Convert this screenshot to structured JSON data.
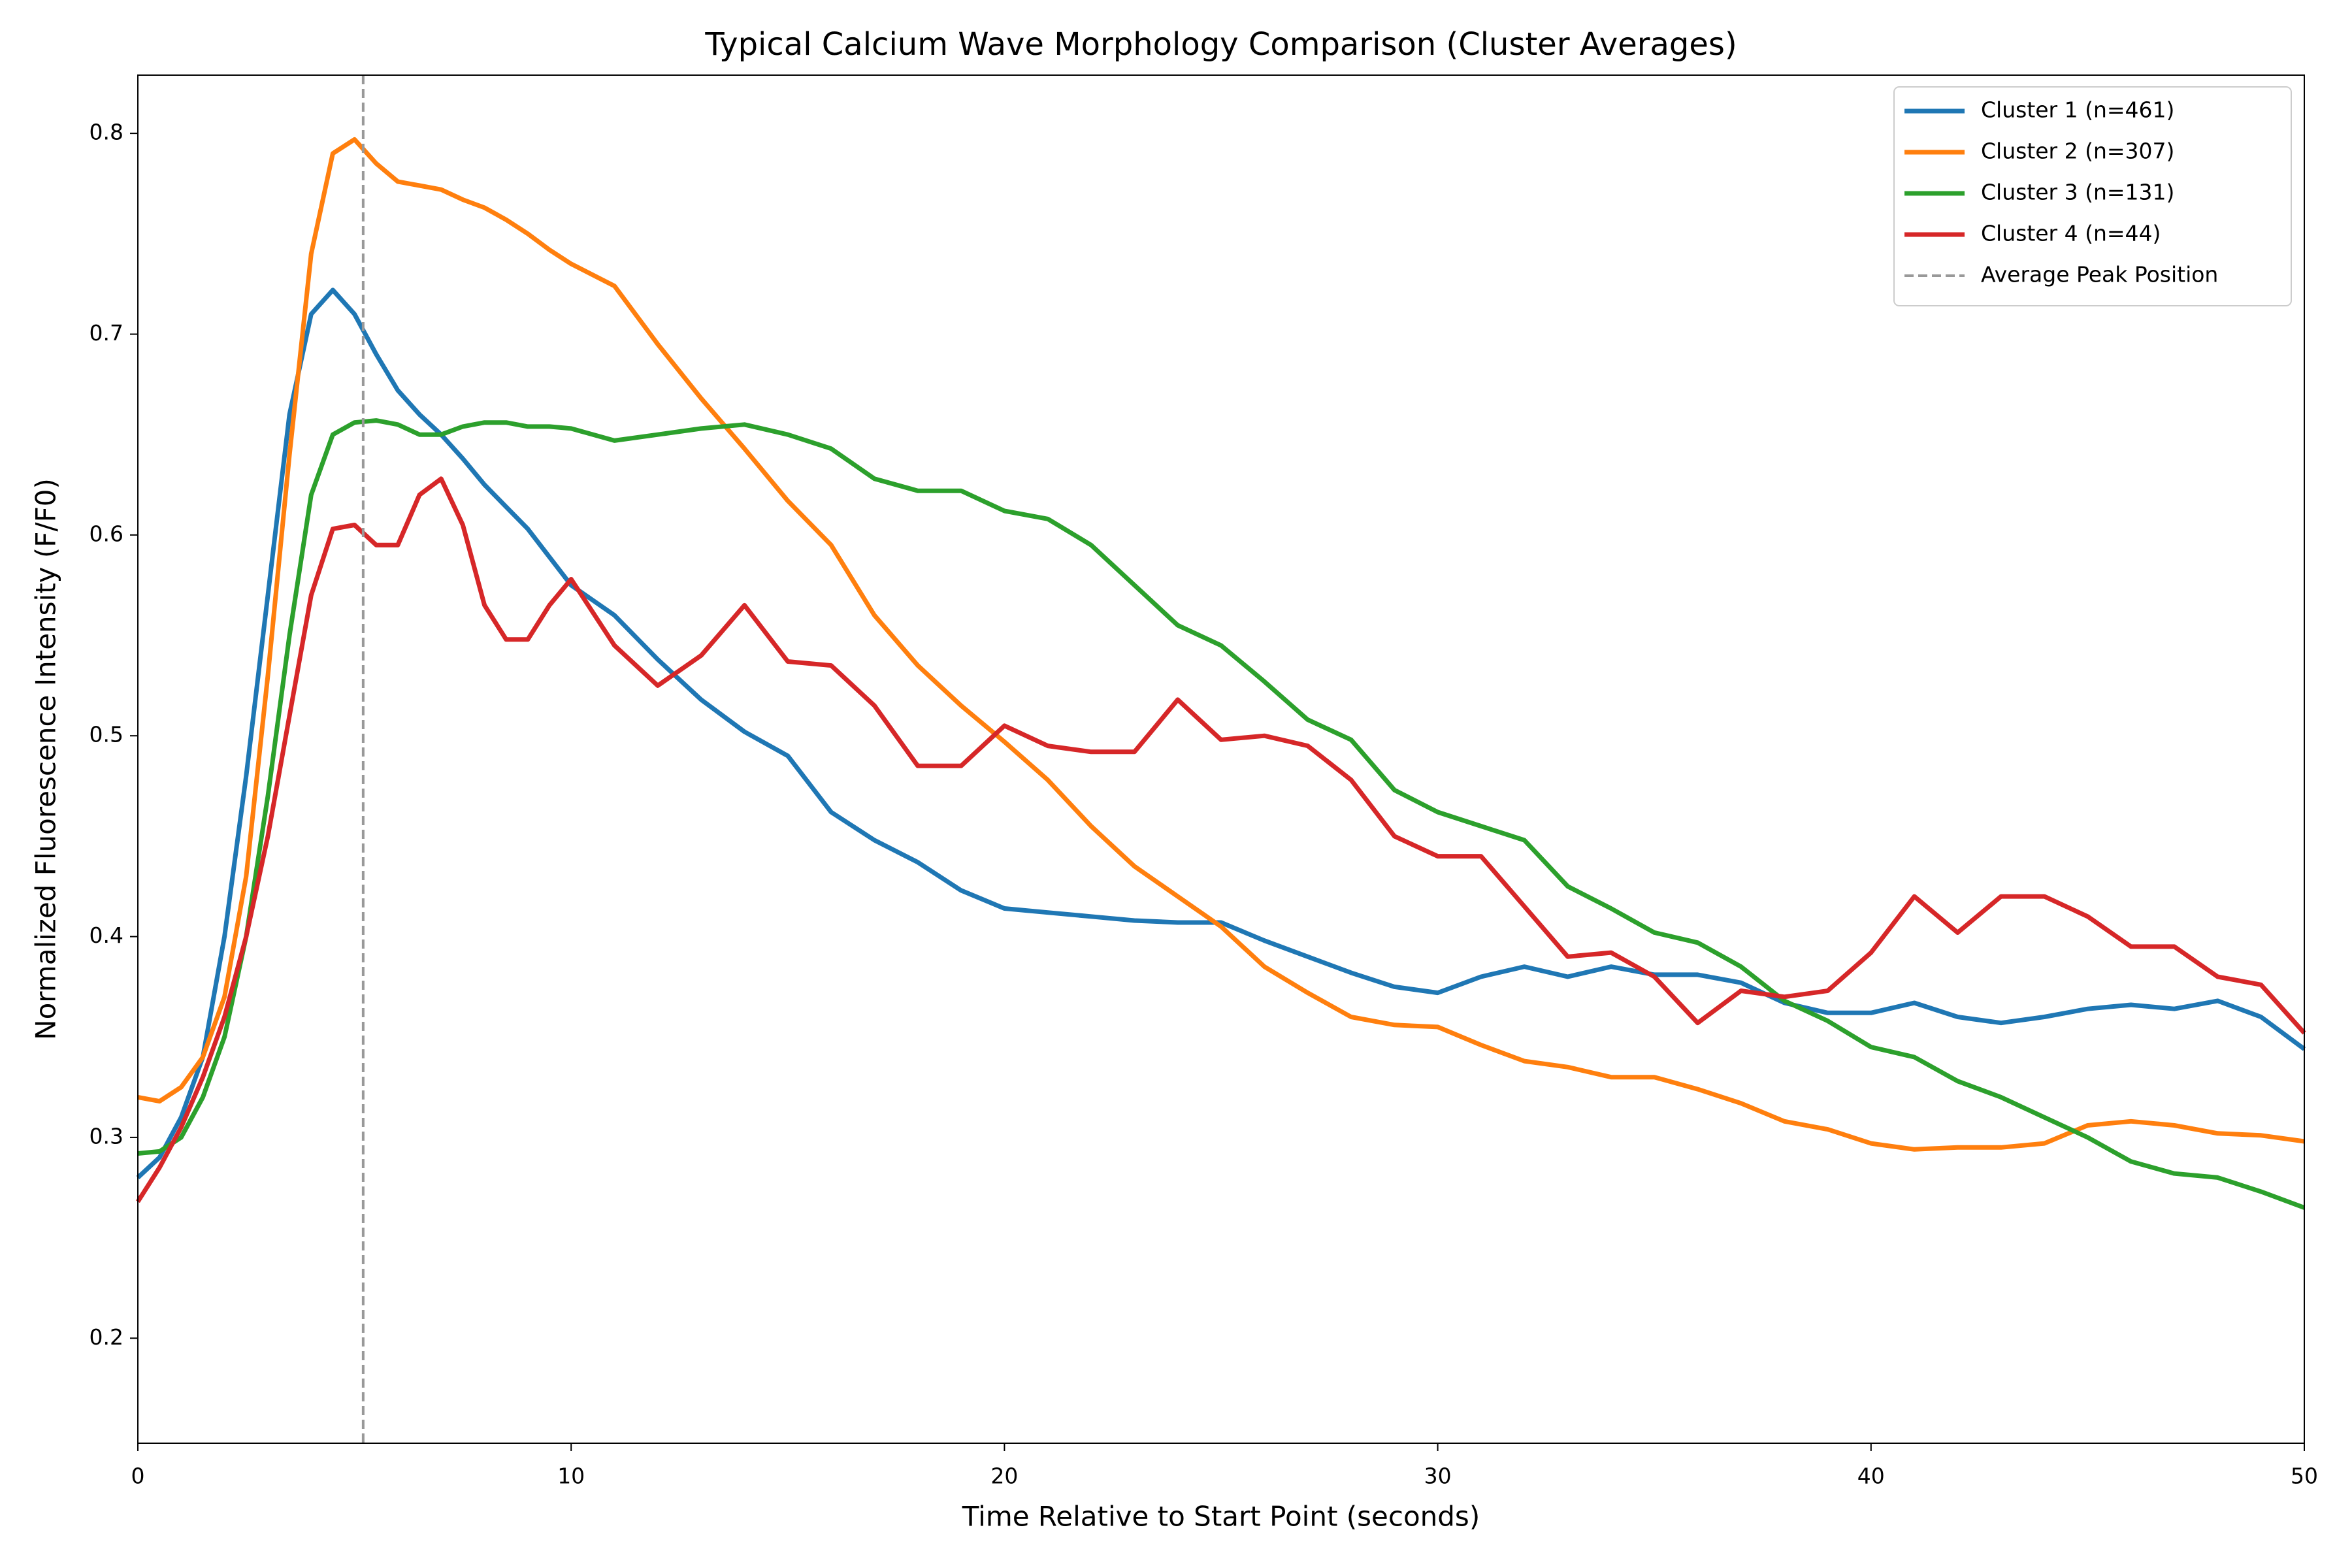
{
  "chart_data": {
    "type": "line",
    "title": "Typical Calcium Wave Morphology Comparison (Cluster Averages)",
    "x_label": "Time Relative to Start Point (seconds)",
    "y_label": "Normalized Fluorescence Intensity (F/F0)",
    "x": [
      0,
      0.5,
      1,
      1.5,
      2,
      2.5,
      3,
      3.5,
      4,
      4.5,
      5,
      5.5,
      6,
      6.5,
      7,
      7.5,
      8,
      8.5,
      9,
      9.5,
      10,
      11,
      12,
      13,
      14,
      15,
      16,
      17,
      18,
      19,
      20,
      21,
      22,
      23,
      24,
      25,
      26,
      27,
      28,
      29,
      30,
      31,
      32,
      33,
      34,
      35,
      36,
      37,
      38,
      39,
      40,
      41,
      42,
      43,
      44,
      45,
      46,
      47,
      48,
      49,
      50
    ],
    "series": [
      {
        "name": "Cluster 1 (n=461)",
        "color": "#1f77b4",
        "values": [
          0.28,
          0.29,
          0.31,
          0.34,
          0.4,
          0.48,
          0.57,
          0.66,
          0.71,
          0.722,
          0.71,
          0.69,
          0.672,
          0.66,
          0.65,
          0.638,
          0.625,
          0.614,
          0.603,
          0.589,
          0.575,
          0.56,
          0.538,
          0.518,
          0.502,
          0.49,
          0.462,
          0.448,
          0.437,
          0.423,
          0.414,
          0.412,
          0.41,
          0.408,
          0.407,
          0.407,
          0.398,
          0.39,
          0.382,
          0.375,
          0.372,
          0.38,
          0.385,
          0.38,
          0.385,
          0.381,
          0.381,
          0.377,
          0.367,
          0.362,
          0.362,
          0.367,
          0.36,
          0.357,
          0.36,
          0.364,
          0.366,
          0.364,
          0.368,
          0.36,
          0.344
        ]
      },
      {
        "name": "Cluster 2 (n=307)",
        "color": "#ff7f0e",
        "values": [
          0.32,
          0.318,
          0.325,
          0.34,
          0.37,
          0.43,
          0.53,
          0.64,
          0.74,
          0.79,
          0.797,
          0.785,
          0.776,
          0.774,
          0.772,
          0.767,
          0.763,
          0.757,
          0.75,
          0.742,
          0.735,
          0.724,
          0.695,
          0.668,
          0.643,
          0.617,
          0.595,
          0.56,
          0.535,
          0.515,
          0.497,
          0.478,
          0.455,
          0.435,
          0.42,
          0.405,
          0.385,
          0.372,
          0.36,
          0.356,
          0.355,
          0.346,
          0.338,
          0.335,
          0.33,
          0.33,
          0.324,
          0.317,
          0.308,
          0.304,
          0.297,
          0.294,
          0.295,
          0.295,
          0.297,
          0.306,
          0.308,
          0.306,
          0.302,
          0.301,
          0.298
        ]
      },
      {
        "name": "Cluster 3 (n=131)",
        "color": "#2ca02c",
        "values": [
          0.292,
          0.293,
          0.3,
          0.32,
          0.35,
          0.4,
          0.47,
          0.55,
          0.62,
          0.65,
          0.656,
          0.657,
          0.655,
          0.65,
          0.65,
          0.654,
          0.656,
          0.656,
          0.654,
          0.654,
          0.653,
          0.647,
          0.65,
          0.653,
          0.655,
          0.65,
          0.643,
          0.628,
          0.622,
          0.622,
          0.612,
          0.608,
          0.595,
          0.575,
          0.555,
          0.545,
          0.527,
          0.508,
          0.498,
          0.473,
          0.462,
          0.455,
          0.448,
          0.425,
          0.414,
          0.402,
          0.397,
          0.385,
          0.368,
          0.358,
          0.345,
          0.34,
          0.328,
          0.32,
          0.31,
          0.3,
          0.288,
          0.282,
          0.28,
          0.273,
          0.265
        ]
      },
      {
        "name": "Cluster 4 (n=44)",
        "color": "#d62728",
        "values": [
          0.268,
          0.285,
          0.305,
          0.33,
          0.36,
          0.4,
          0.45,
          0.51,
          0.57,
          0.603,
          0.605,
          0.595,
          0.595,
          0.62,
          0.628,
          0.605,
          0.565,
          0.548,
          0.548,
          0.565,
          0.578,
          0.545,
          0.525,
          0.54,
          0.565,
          0.537,
          0.535,
          0.515,
          0.485,
          0.485,
          0.505,
          0.495,
          0.492,
          0.492,
          0.518,
          0.498,
          0.5,
          0.495,
          0.478,
          0.45,
          0.44,
          0.44,
          0.415,
          0.39,
          0.392,
          0.38,
          0.357,
          0.373,
          0.37,
          0.373,
          0.392,
          0.42,
          0.402,
          0.42,
          0.42,
          0.41,
          0.395,
          0.395,
          0.38,
          0.376,
          0.352
        ]
      }
    ],
    "vline": {
      "name": "Average Peak Position",
      "x": 5.2,
      "color": "#999999"
    },
    "xlim": [
      0,
      50
    ],
    "xticks": [
      0,
      10,
      20,
      30,
      40,
      50
    ],
    "ylim": [
      0.1477,
      0.829
    ],
    "yticks": [
      0.2,
      0.3,
      0.4,
      0.5,
      0.6,
      0.7,
      0.8
    ],
    "legend": "upper right"
  }
}
